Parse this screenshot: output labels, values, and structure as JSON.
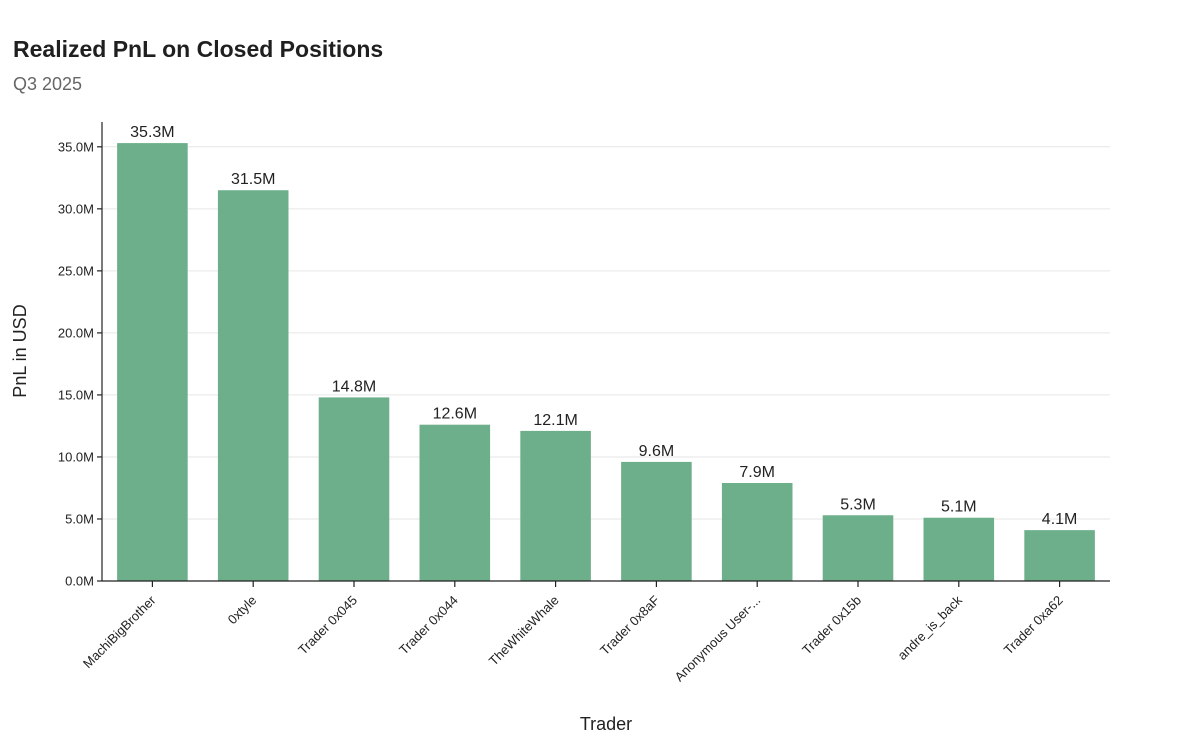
{
  "chart_data": {
    "type": "bar",
    "title": "Realized PnL on Closed Positions",
    "subtitle": "Q3 2025",
    "xlabel": "Trader",
    "ylabel": "PnL in USD",
    "ylim": [
      0,
      37000000
    ],
    "yticks": [
      0,
      5000000,
      10000000,
      15000000,
      20000000,
      25000000,
      30000000,
      35000000
    ],
    "ytick_labels": [
      "0.0M",
      "5.0M",
      "10.0M",
      "15.0M",
      "20.0M",
      "25.0M",
      "30.0M",
      "35.0M"
    ],
    "grid": true,
    "bar_color": "#6daf8a",
    "categories": [
      "MachiBigBrother",
      "0xtyle",
      "Trader 0x045",
      "Trader 0x044",
      "TheWhiteWhale",
      "Trader 0x8aF",
      "Anonymous User-...",
      "Trader 0x15b",
      "andre_is_back",
      "Trader 0xa62"
    ],
    "values": [
      35300000,
      31500000,
      14800000,
      12600000,
      12100000,
      9600000,
      7900000,
      5300000,
      5100000,
      4100000
    ],
    "data_labels": [
      "35.3M",
      "31.5M",
      "14.8M",
      "12.6M",
      "12.1M",
      "9.6M",
      "7.9M",
      "5.3M",
      "5.1M",
      "4.1M"
    ]
  }
}
